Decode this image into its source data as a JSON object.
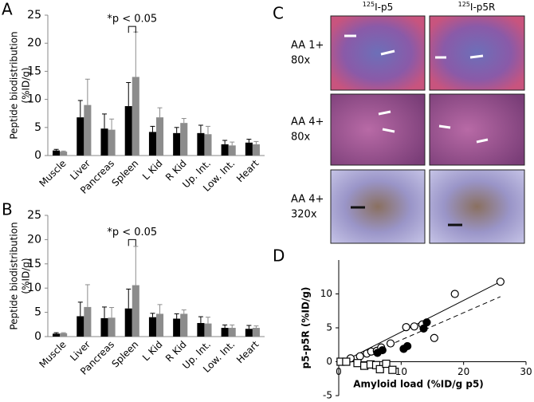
{
  "chart_data": [
    {
      "panel": "A",
      "type": "bar",
      "categories": [
        "Muscle",
        "Liver",
        "Pancreas",
        "Spleen",
        "L Kid",
        "R Kid",
        "Up. Int.",
        "Low. Int.",
        "Heart"
      ],
      "series": [
        {
          "color": "#000000",
          "values": [
            0.9,
            6.8,
            4.8,
            8.8,
            4.2,
            4.0,
            4.0,
            2.0,
            2.3
          ],
          "errors": [
            0.2,
            3.0,
            2.6,
            4.2,
            1.0,
            1.0,
            1.4,
            0.7,
            0.6
          ]
        },
        {
          "color": "#8c8c8c",
          "values": [
            0.7,
            9.0,
            4.6,
            14.0,
            6.8,
            5.8,
            3.8,
            1.8,
            2.0
          ],
          "errors": [
            0.1,
            4.6,
            1.9,
            8.0,
            1.7,
            0.8,
            1.4,
            0.6,
            0.5
          ]
        }
      ],
      "ylabel": [
        "Peptide biodistribution",
        "(%ID/g)"
      ],
      "ylim": [
        0,
        25
      ],
      "yticks": [
        0,
        5,
        10,
        15,
        20,
        25
      ],
      "annotation": {
        "text": "*p < 0.05",
        "category": 3,
        "value": 23
      }
    },
    {
      "panel": "B",
      "type": "bar",
      "categories": [
        "Muscle",
        "Liver",
        "Pancreas",
        "Spleen",
        "L Kid",
        "R Kid",
        "Up. Int.",
        "Low. Int.",
        "Heart"
      ],
      "series": [
        {
          "color": "#000000",
          "values": [
            0.6,
            4.2,
            3.8,
            5.8,
            4.0,
            3.7,
            2.8,
            1.8,
            1.6
          ],
          "errors": [
            0.2,
            2.9,
            2.3,
            4.0,
            0.8,
            1.0,
            1.3,
            0.6,
            0.7
          ]
        },
        {
          "color": "#8c8c8c",
          "values": [
            0.7,
            6.1,
            3.9,
            10.6,
            4.7,
            4.7,
            2.7,
            1.8,
            1.8
          ],
          "errors": [
            0.1,
            4.6,
            2.1,
            8.0,
            1.9,
            0.8,
            1.3,
            0.6,
            0.4
          ]
        }
      ],
      "ylabel": [
        "Peptide biodistribution",
        "(%ID/g)"
      ],
      "ylim": [
        0,
        25
      ],
      "yticks": [
        0,
        5,
        10,
        15,
        20,
        25
      ],
      "annotation": {
        "text": "*p < 0.05",
        "category": 3,
        "value": 20
      }
    },
    {
      "panel": "D",
      "type": "scatter",
      "xlabel": "Amyloid load (%ID/g p5)",
      "ylabel": "p5-p5R (%ID/g)",
      "xlim": [
        0,
        30
      ],
      "xticks": [
        0,
        10,
        20,
        30
      ],
      "ylim": [
        -5,
        15
      ],
      "yticks": [
        -5,
        0,
        5,
        10
      ],
      "series": [
        {
          "marker": "circle",
          "filled": false,
          "x": [
            1.9,
            3.4,
            4.5,
            5.2,
            6.1,
            6.8,
            8.3,
            10.8,
            12.1,
            13.4,
            15.3,
            18.6,
            25.9
          ],
          "y": [
            0.5,
            0.8,
            1.2,
            1.5,
            1.6,
            2.1,
            2.7,
            5.1,
            5.2,
            5.5,
            3.5,
            10.0,
            11.8
          ]
        },
        {
          "marker": "circle",
          "filled": true,
          "x": [
            6.2,
            7.0,
            10.4,
            11.0,
            13.6,
            14.1
          ],
          "y": [
            1.3,
            1.7,
            1.9,
            2.3,
            4.9,
            5.8
          ]
        },
        {
          "marker": "square",
          "filled": false,
          "x": [
            0.3,
            1.2,
            3.0,
            4.1,
            5.1,
            6.0,
            6.6,
            7.6,
            8.6
          ],
          "y": [
            0.0,
            0.0,
            -0.2,
            -0.6,
            -0.4,
            -0.5,
            -1.1,
            -0.3,
            -1.2
          ]
        }
      ],
      "lines": [
        {
          "style": "solid",
          "x": [
            0,
            25.9
          ],
          "y": [
            -0.3,
            11.8
          ]
        },
        {
          "style": "dashed",
          "x": [
            2,
            25.9
          ],
          "y": [
            0,
            9.6
          ]
        },
        {
          "style": "dotted",
          "x": [
            0,
            25.9
          ],
          "y": [
            0,
            0
          ]
        }
      ]
    }
  ],
  "panel_c": {
    "panel": "C",
    "columns": [
      {
        "sup": "125",
        "text": "I-p5"
      },
      {
        "sup": "125",
        "text": "I-p5R"
      }
    ],
    "rows": [
      [
        "AA 1+",
        "80x"
      ],
      [
        "AA 4+",
        "80x"
      ],
      [
        "AA 4+",
        "320x"
      ]
    ]
  }
}
